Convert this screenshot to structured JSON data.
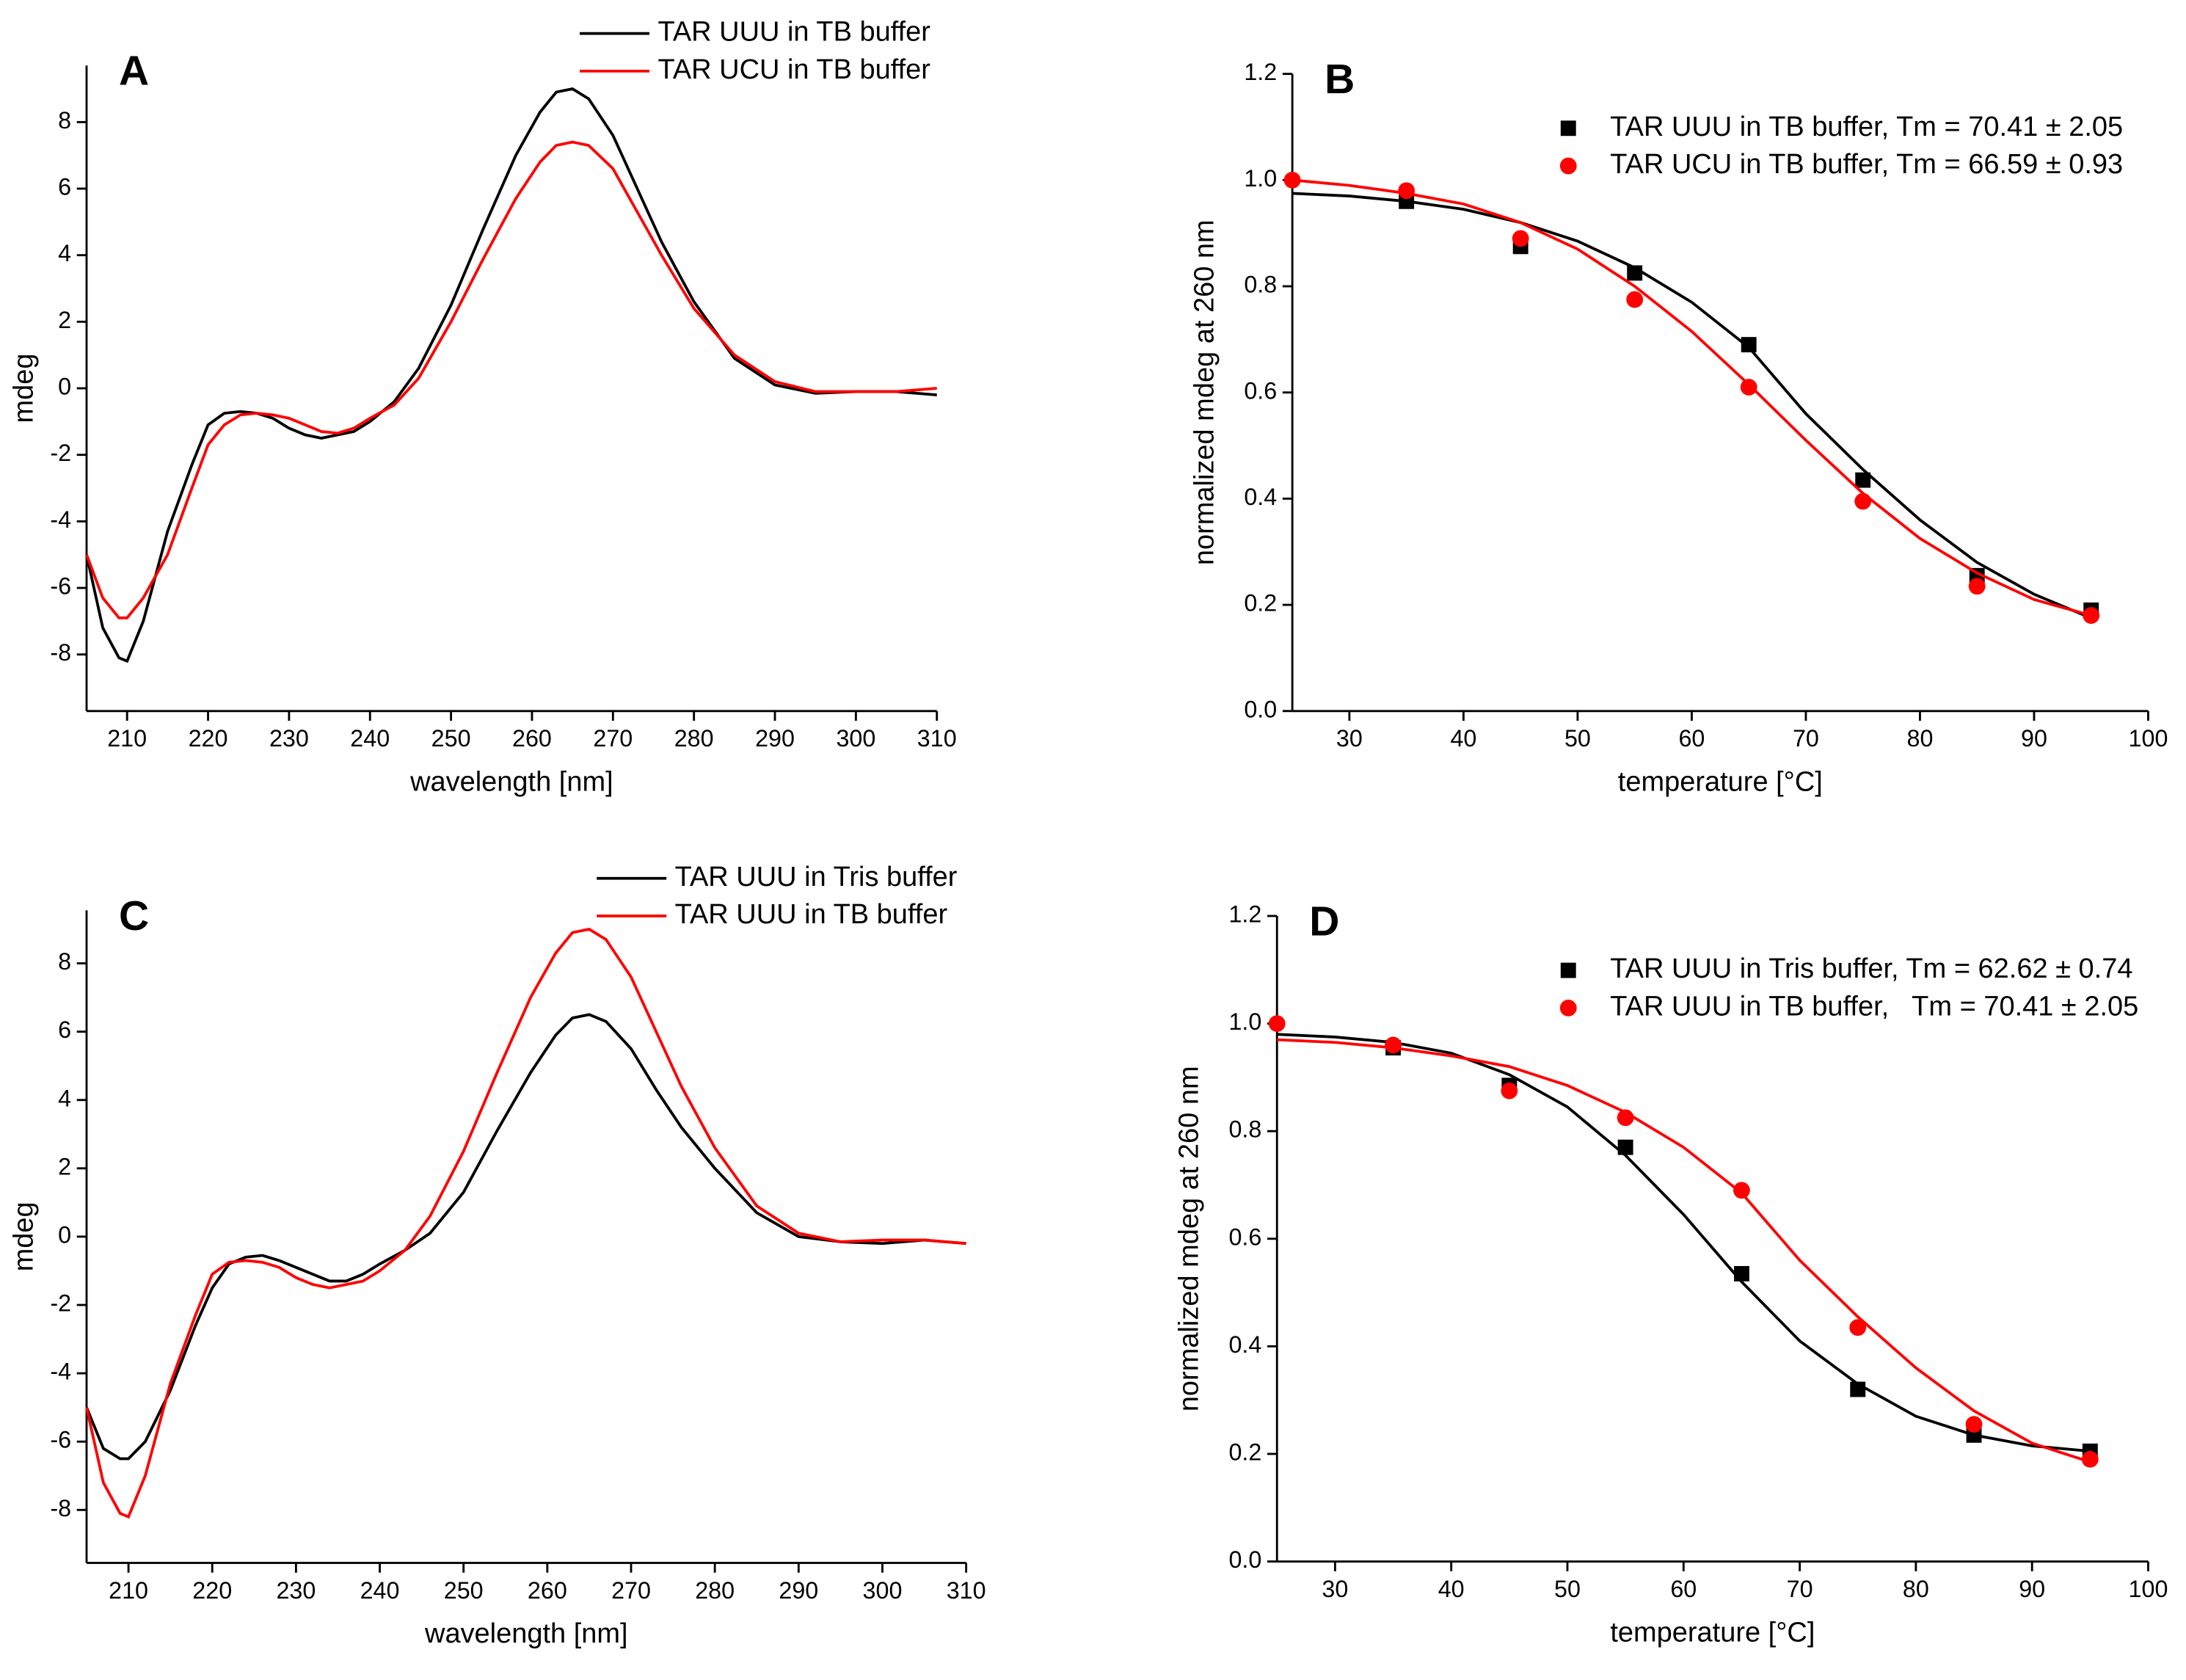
{
  "chart_data": [
    {
      "type": "line",
      "label": "A",
      "xlabel": "wavelength [nm]",
      "ylabel": "mdeg",
      "legend": "top",
      "xlim": [
        205,
        310
      ],
      "xticks": [
        210,
        220,
        230,
        240,
        250,
        260,
        270,
        280,
        290,
        300,
        310
      ],
      "ylim": [
        -9.7,
        9.7
      ],
      "yticks": [
        -8,
        -6,
        -4,
        -2,
        0,
        2,
        4,
        6,
        8
      ],
      "x": [
        205,
        207,
        209,
        210,
        212,
        215,
        218,
        220,
        222,
        224,
        226,
        228,
        230,
        232,
        234,
        236,
        238,
        240,
        243,
        246,
        250,
        254,
        258,
        261,
        263,
        265,
        267,
        270,
        273,
        276,
        280,
        285,
        290,
        295,
        300,
        305,
        310
      ],
      "series": [
        {
          "name": "TAR UUU in TB buffer",
          "color": "#000000",
          "values": [
            -5,
            -7.2,
            -8.1,
            -8.2,
            -7.0,
            -4.3,
            -2.3,
            -1.1,
            -0.75,
            -0.7,
            -0.75,
            -0.9,
            -1.2,
            -1.4,
            -1.5,
            -1.4,
            -1.3,
            -1.0,
            -0.4,
            0.6,
            2.5,
            4.8,
            7.0,
            8.3,
            8.9,
            9.0,
            8.7,
            7.6,
            6.0,
            4.4,
            2.6,
            0.9,
            0.1,
            -0.15,
            -0.1,
            -0.1,
            -0.2
          ]
        },
        {
          "name": "TAR UCU in TB buffer",
          "color": "#ff0000",
          "values": [
            -5,
            -6.3,
            -6.9,
            -6.9,
            -6.3,
            -5.0,
            -3.0,
            -1.7,
            -1.1,
            -0.8,
            -0.75,
            -0.8,
            -0.9,
            -1.1,
            -1.3,
            -1.35,
            -1.2,
            -0.9,
            -0.5,
            0.3,
            2.0,
            3.9,
            5.7,
            6.8,
            7.3,
            7.4,
            7.3,
            6.6,
            5.3,
            4.0,
            2.4,
            1.0,
            0.2,
            -0.1,
            -0.1,
            -0.1,
            0.0
          ]
        }
      ]
    },
    {
      "type": "scatter",
      "label": "B",
      "xlabel": "temperature [°C]",
      "ylabel": "normalized mdeg at 260 nm",
      "legend": "top-right",
      "xlim": [
        25,
        100
      ],
      "xticks": [
        30,
        40,
        50,
        60,
        70,
        80,
        90,
        100
      ],
      "ylim": [
        0,
        1.2
      ],
      "yticks": [
        {
          "value": 0,
          "label": "0.0"
        },
        0.2,
        0.4,
        0.6,
        0.8,
        {
          "value": 1,
          "label": "1.0"
        },
        1.2
      ],
      "series": [
        {
          "name": "TAR UUU in TB buffer, Tm = 70.41 ± 2.05",
          "color": "#000000",
          "marker": "square",
          "x": [
            35,
            45,
            55,
            65,
            75,
            85,
            95
          ],
          "values": [
            0.96,
            0.875,
            0.825,
            0.69,
            0.435,
            0.255,
            0.19
          ],
          "fit": {
            "x": [
              25,
              30,
              35,
              40,
              45,
              50,
              55,
              60,
              65,
              70,
              75,
              80,
              85,
              90,
              95
            ],
            "values": [
              0.975,
              0.97,
              0.96,
              0.945,
              0.92,
              0.885,
              0.835,
              0.77,
              0.685,
              0.56,
              0.455,
              0.36,
              0.28,
              0.22,
              0.175
            ]
          }
        },
        {
          "name": "TAR UCU in TB buffer, Tm = 66.59 ± 0.93",
          "color": "#ff0000",
          "marker": "circle",
          "x": [
            25,
            35,
            45,
            55,
            65,
            75,
            85,
            95
          ],
          "values": [
            1.0,
            0.98,
            0.89,
            0.775,
            0.61,
            0.395,
            0.235,
            0.18
          ],
          "fit": {
            "x": [
              25,
              30,
              35,
              40,
              45,
              50,
              55,
              60,
              65,
              70,
              75,
              80,
              85,
              90,
              95
            ],
            "values": [
              1.0,
              0.99,
              0.975,
              0.955,
              0.92,
              0.87,
              0.8,
              0.715,
              0.615,
              0.51,
              0.41,
              0.325,
              0.26,
              0.21,
              0.18
            ]
          }
        }
      ]
    },
    {
      "type": "line",
      "label": "C",
      "xlabel": "wavelength [nm]",
      "ylabel": "mdeg",
      "legend": "top",
      "xlim": [
        205,
        310
      ],
      "xticks": [
        210,
        220,
        230,
        240,
        250,
        260,
        270,
        280,
        290,
        300,
        310
      ],
      "ylim": [
        -9.55,
        9.55
      ],
      "yticks": [
        -8,
        -6,
        -4,
        -2,
        0,
        2,
        4,
        6,
        8
      ],
      "x": [
        205,
        207,
        209,
        210,
        212,
        215,
        218,
        220,
        222,
        224,
        226,
        228,
        230,
        232,
        234,
        236,
        238,
        240,
        243,
        246,
        250,
        254,
        258,
        261,
        263,
        265,
        267,
        270,
        273,
        276,
        280,
        285,
        290,
        295,
        300,
        305,
        310
      ],
      "series": [
        {
          "name": "TAR UUU in Tris buffer",
          "color": "#000000",
          "values": [
            -5,
            -6.2,
            -6.5,
            -6.5,
            -6.0,
            -4.5,
            -2.6,
            -1.5,
            -0.8,
            -0.6,
            -0.55,
            -0.7,
            -0.9,
            -1.1,
            -1.3,
            -1.3,
            -1.1,
            -0.8,
            -0.4,
            0.1,
            1.3,
            3.1,
            4.8,
            5.9,
            6.4,
            6.5,
            6.3,
            5.5,
            4.3,
            3.2,
            2.0,
            0.7,
            0.0,
            -0.15,
            -0.2,
            -0.1,
            -0.2
          ]
        },
        {
          "name": "TAR UUU in TB buffer",
          "color": "#ff0000",
          "values": [
            -5,
            -7.2,
            -8.1,
            -8.2,
            -7.0,
            -4.3,
            -2.3,
            -1.1,
            -0.75,
            -0.7,
            -0.75,
            -0.9,
            -1.2,
            -1.4,
            -1.5,
            -1.4,
            -1.3,
            -1.0,
            -0.4,
            0.6,
            2.5,
            4.8,
            7.0,
            8.3,
            8.9,
            9.0,
            8.7,
            7.6,
            6.0,
            4.4,
            2.6,
            0.9,
            0.1,
            -0.15,
            -0.1,
            -0.1,
            -0.2
          ]
        }
      ]
    },
    {
      "type": "scatter",
      "label": "D",
      "xlabel": "temperature [°C]",
      "ylabel": "normalized mdeg at 260 nm",
      "legend": "top-right",
      "xlim": [
        25,
        100
      ],
      "xticks": [
        30,
        40,
        50,
        60,
        70,
        80,
        90,
        100
      ],
      "ylim": [
        0,
        1.2
      ],
      "yticks": [
        {
          "value": 0,
          "label": "0.0"
        },
        0.2,
        0.4,
        0.6,
        0.8,
        {
          "value": 1,
          "label": "1.0"
        },
        1.2
      ],
      "series": [
        {
          "name": "TAR UUU in Tris buffer, Tm = 62.62 ± 0.74",
          "color": "#000000",
          "marker": "square",
          "x": [
            35,
            45,
            55,
            65,
            75,
            85,
            95
          ],
          "values": [
            0.955,
            0.885,
            0.77,
            0.535,
            0.32,
            0.235,
            0.205
          ],
          "fit": {
            "x": [
              25,
              30,
              35,
              40,
              45,
              50,
              55,
              60,
              65,
              70,
              75,
              80,
              85,
              90,
              95
            ],
            "values": [
              0.98,
              0.975,
              0.965,
              0.945,
              0.905,
              0.845,
              0.755,
              0.645,
              0.52,
              0.41,
              0.33,
              0.27,
              0.235,
              0.215,
              0.205
            ]
          }
        },
        {
          "name": "TAR UUU in TB buffer,   Tm = 70.41 ± 2.05",
          "color": "#ff0000",
          "marker": "circle",
          "x": [
            25,
            35,
            45,
            55,
            65,
            75,
            85,
            95
          ],
          "values": [
            1.0,
            0.96,
            0.875,
            0.825,
            0.69,
            0.435,
            0.255,
            0.19
          ],
          "fit": {
            "x": [
              25,
              30,
              35,
              40,
              45,
              50,
              55,
              60,
              65,
              70,
              75,
              80,
              85,
              90,
              95
            ],
            "values": [
              0.97,
              0.965,
              0.955,
              0.94,
              0.92,
              0.885,
              0.835,
              0.77,
              0.685,
              0.56,
              0.455,
              0.36,
              0.28,
              0.22,
              0.185
            ]
          }
        }
      ]
    }
  ]
}
